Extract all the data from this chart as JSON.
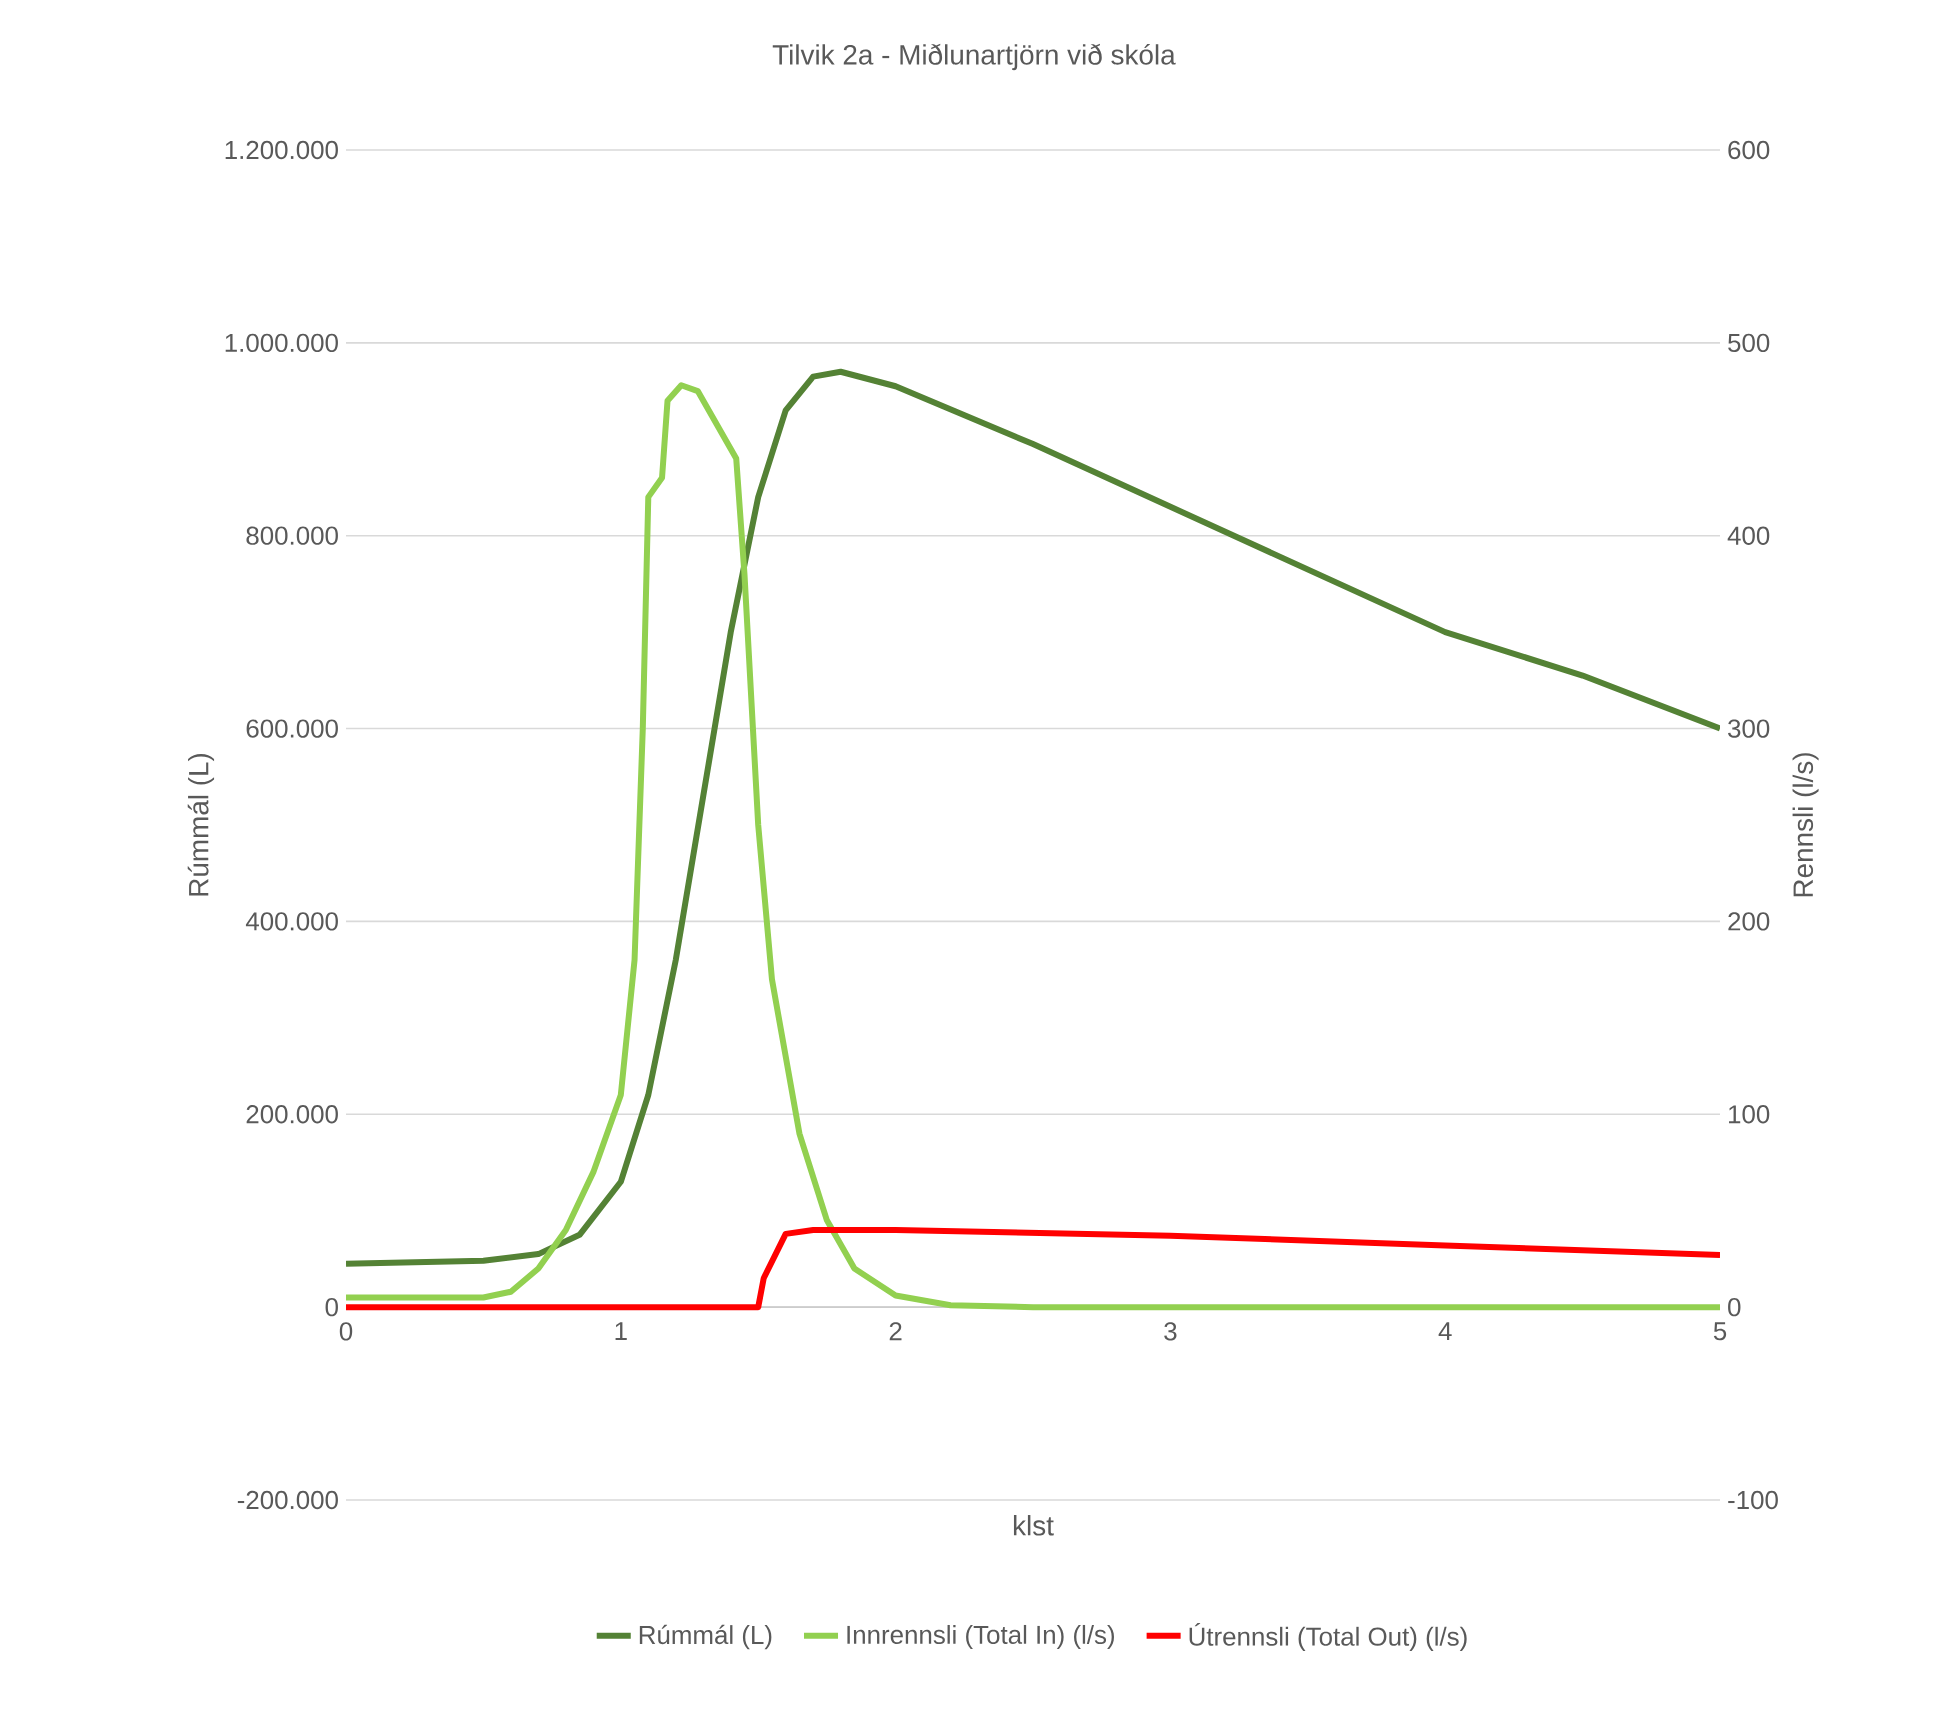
{
  "chart_data": {
    "type": "line",
    "title": "Tilvik 2a - Miðlunartjörn við skóla",
    "xlabel": "klst",
    "ylabel": "Rúmmál (L)",
    "y2label": "Rennsli (l/s)",
    "xlim": [
      0,
      5
    ],
    "xticks": [
      0,
      1,
      2,
      3,
      4,
      5
    ],
    "ylim": [
      -200000,
      1200000
    ],
    "yticks": [
      {
        "value": -200000,
        "label": "-200.000"
      },
      {
        "value": 0,
        "label": "0"
      },
      {
        "value": 200000,
        "label": "200.000"
      },
      {
        "value": 400000,
        "label": "400.000"
      },
      {
        "value": 600000,
        "label": "600.000"
      },
      {
        "value": 800000,
        "label": "800.000"
      },
      {
        "value": 1000000,
        "label": "1.000.000"
      },
      {
        "value": 1200000,
        "label": "1.200.000"
      }
    ],
    "y2lim": [
      -100,
      600
    ],
    "y2ticks": [
      -100,
      0,
      100,
      200,
      300,
      400,
      500,
      600
    ],
    "grid": "y",
    "legend": "bottom",
    "marker": "none",
    "line_style": "solid",
    "series": [
      {
        "name": "Rúmmál (L)",
        "color": "#548235",
        "x": [
          0,
          0.5,
          0.7,
          0.85,
          1.0,
          1.1,
          1.2,
          1.3,
          1.4,
          1.5,
          1.6,
          1.7,
          1.8,
          2.0,
          2.5,
          3.0,
          3.5,
          4.0,
          4.5,
          5.0
        ],
        "values": [
          45000,
          48000,
          55000,
          75000,
          130000,
          220000,
          360000,
          530000,
          700000,
          840000,
          930000,
          965000,
          970000,
          955000,
          895000,
          830000,
          765000,
          700000,
          655000,
          600000
        ]
      },
      {
        "name": "Innrennsli (Total In) (l/s)",
        "color": "#92d050",
        "axis": "y2",
        "x": [
          0,
          0.5,
          0.6,
          0.7,
          0.8,
          0.9,
          1.0,
          1.05,
          1.08,
          1.1,
          1.15,
          1.17,
          1.22,
          1.28,
          1.38,
          1.42,
          1.45,
          1.5,
          1.55,
          1.65,
          1.75,
          1.85,
          2.0,
          2.2,
          2.5,
          5.0
        ],
        "values": [
          5,
          5,
          8,
          20,
          40,
          70,
          110,
          180,
          300,
          420,
          430,
          470,
          478,
          475,
          450,
          440,
          380,
          250,
          170,
          90,
          45,
          20,
          6,
          1,
          0,
          0
        ]
      },
      {
        "name": "Útrennsli (Total Out) (l/s)",
        "color": "#ff0000",
        "axis": "y2",
        "x": [
          0,
          1.5,
          1.52,
          1.6,
          1.7,
          2.0,
          3.0,
          4.0,
          5.0
        ],
        "values": [
          0,
          0,
          15,
          38,
          40,
          40,
          37,
          32,
          27
        ]
      }
    ]
  }
}
